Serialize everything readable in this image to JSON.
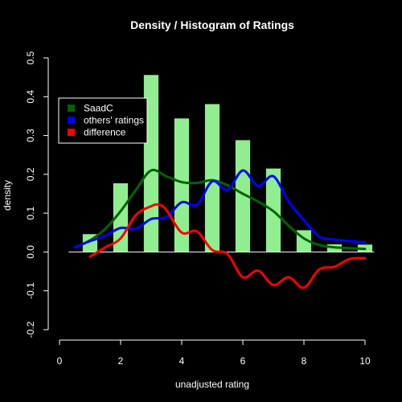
{
  "chart_data": {
    "type": "bar",
    "title": "Density / Histogram of Ratings",
    "xlabel": "unadjusted rating",
    "ylabel": "density",
    "xlim": [
      0,
      10
    ],
    "ylim": [
      -0.2,
      0.5
    ],
    "x_ticks": [
      0,
      2,
      4,
      6,
      8,
      10
    ],
    "x_tick_labels": [
      "0",
      "2",
      "4",
      "6",
      "8",
      "10"
    ],
    "y_ticks": [
      -0.2,
      -0.1,
      0.0,
      0.1,
      0.2,
      0.3,
      0.4,
      0.5
    ],
    "y_tick_labels": [
      "-0.2",
      "-0.1",
      "0.0",
      "0.1",
      "0.2",
      "0.3",
      "0.4",
      "0.5"
    ],
    "bar_color": "#90EE90",
    "bars": [
      {
        "x": 1,
        "value": 0.046
      },
      {
        "x": 2,
        "value": 0.177
      },
      {
        "x": 3,
        "value": 0.456
      },
      {
        "x": 4,
        "value": 0.344
      },
      {
        "x": 5,
        "value": 0.381
      },
      {
        "x": 6,
        "value": 0.288
      },
      {
        "x": 7,
        "value": 0.215
      },
      {
        "x": 8,
        "value": 0.056
      },
      {
        "x": 9,
        "value": 0.02
      },
      {
        "x": 10,
        "value": 0.019
      }
    ],
    "series": [
      {
        "name": "SaadC",
        "color": "#006400",
        "x": [
          0.5,
          1.0,
          1.5,
          2.0,
          2.5,
          3.0,
          3.5,
          4.0,
          4.5,
          5.0,
          5.5,
          6.0,
          6.5,
          7.0,
          7.5,
          8.0,
          8.5,
          9.0,
          9.5,
          10.0
        ],
        "values": [
          0.012,
          0.03,
          0.06,
          0.105,
          0.16,
          0.21,
          0.195,
          0.18,
          0.178,
          0.185,
          0.172,
          0.15,
          0.13,
          0.105,
          0.068,
          0.035,
          0.018,
          0.012,
          0.01,
          0.008
        ]
      },
      {
        "name": "others' ratings",
        "color": "#0000FF",
        "x": [
          0.5,
          1.0,
          1.5,
          2.0,
          2.5,
          3.0,
          3.5,
          4.0,
          4.5,
          5.0,
          5.5,
          6.0,
          6.5,
          7.0,
          7.5,
          8.0,
          8.5,
          9.0,
          9.5,
          10.0
        ],
        "values": [
          0.012,
          0.028,
          0.042,
          0.062,
          0.06,
          0.085,
          0.09,
          0.128,
          0.122,
          0.182,
          0.16,
          0.21,
          0.17,
          0.195,
          0.13,
          0.082,
          0.04,
          0.032,
          0.028,
          0.025
        ]
      },
      {
        "name": "difference",
        "color": "#FF0000",
        "x": [
          1.0,
          1.5,
          2.0,
          2.5,
          3.0,
          3.25,
          3.5,
          4.0,
          4.5,
          5.0,
          5.5,
          6.0,
          6.5,
          7.0,
          7.5,
          8.0,
          8.5,
          9.0,
          9.5,
          10.0
        ],
        "values": [
          -0.012,
          0.012,
          0.035,
          0.095,
          0.118,
          0.122,
          0.108,
          0.05,
          0.053,
          0.005,
          -0.005,
          -0.065,
          -0.048,
          -0.085,
          -0.065,
          -0.092,
          -0.045,
          -0.038,
          -0.018,
          -0.016
        ]
      }
    ],
    "legend": {
      "placement": "top-left",
      "entries": [
        "SaadC",
        "others' ratings",
        "difference"
      ]
    },
    "grid": false,
    "background": "#000000",
    "foreground": "#FFFFFF"
  }
}
